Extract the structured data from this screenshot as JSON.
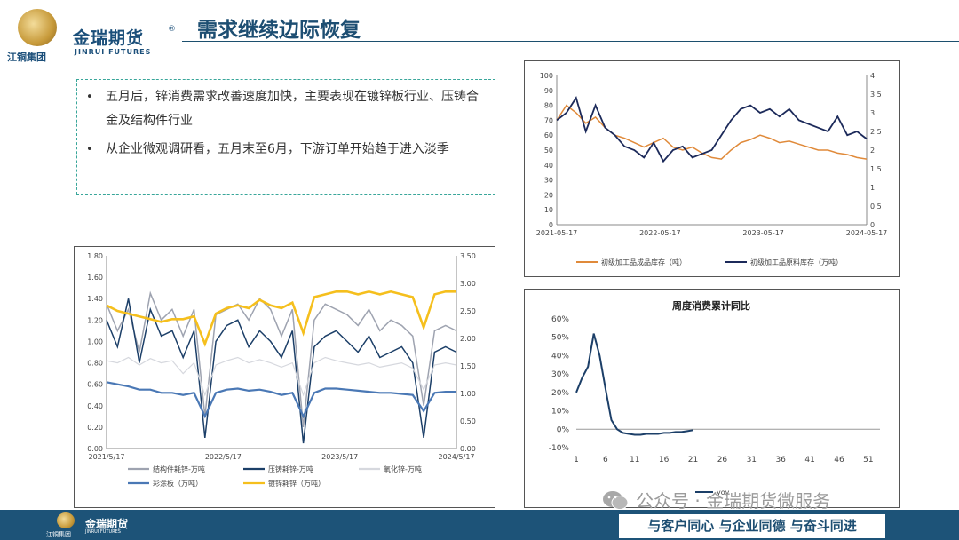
{
  "header": {
    "logo_cn": "金瑞期货",
    "logo_reg": "®",
    "logo_en": "JINRUI FUTURES",
    "logo_group": "江铜集团",
    "title": "需求继续边际恢复"
  },
  "bullets": [
    {
      "text": "五月后，锌消费需求改善速度加快，主要表现在镀锌板行业、压铸合金及结构件行业"
    },
    {
      "text": "从企业微观调研看，五月末至6月，下游订单开始趋于进入淡季"
    }
  ],
  "colors": {
    "header_blue": "#1d4e72",
    "footer_blue": "#1d5378",
    "orange": "#e08a3a",
    "navy": "#1c2a5a",
    "gold": "#f5bf1d",
    "steel_blue": "#4a78b5"
  },
  "chart_data": [
    {
      "type": "line",
      "id": "zinc_consumption",
      "x_ticks": [
        "2021/5/17",
        "2022/5/17",
        "2023/5/17",
        "2024/5/17"
      ],
      "ylim_left": [
        0,
        1.8
      ],
      "left_ticks": [
        "0.00",
        "0.20",
        "0.40",
        "0.60",
        "0.80",
        "1.00",
        "1.20",
        "1.40",
        "1.60",
        "1.80"
      ],
      "ylim_right": [
        0,
        3.5
      ],
      "right_ticks": [
        "0.00",
        "0.50",
        "1.00",
        "1.50",
        "2.00",
        "2.50",
        "3.00",
        "3.50"
      ],
      "series": [
        {
          "name": "结构件耗锌-万吨",
          "color": "#9ea3b0",
          "axis": "left",
          "values": [
            1.35,
            1.1,
            1.3,
            0.9,
            1.45,
            1.2,
            1.3,
            1.05,
            1.3,
            0.3,
            1.25,
            1.3,
            1.35,
            1.2,
            1.4,
            1.3,
            1.05,
            1.3,
            0.2,
            1.2,
            1.35,
            1.3,
            1.25,
            1.15,
            1.3,
            1.1,
            1.2,
            1.15,
            1.05,
            0.4,
            1.1,
            1.15,
            1.1
          ]
        },
        {
          "name": "压铸耗锌-万吨",
          "color": "#1c3f68",
          "axis": "left",
          "values": [
            1.2,
            0.95,
            1.4,
            0.8,
            1.3,
            1.05,
            1.1,
            0.85,
            1.1,
            0.1,
            1.0,
            1.15,
            1.2,
            0.95,
            1.1,
            1.0,
            0.85,
            1.1,
            0.05,
            0.95,
            1.05,
            1.1,
            1.0,
            0.9,
            1.05,
            0.85,
            0.9,
            0.95,
            0.8,
            0.1,
            0.9,
            0.95,
            0.9
          ]
        },
        {
          "name": "氧化锌-万吨",
          "color": "#d6d8de",
          "axis": "left",
          "values": [
            0.82,
            0.8,
            0.85,
            0.78,
            0.84,
            0.8,
            0.82,
            0.7,
            0.8,
            0.5,
            0.78,
            0.82,
            0.85,
            0.8,
            0.83,
            0.8,
            0.76,
            0.8,
            0.5,
            0.8,
            0.85,
            0.82,
            0.8,
            0.78,
            0.8,
            0.76,
            0.78,
            0.8,
            0.75,
            0.55,
            0.78,
            0.8,
            0.78
          ]
        },
        {
          "name": "彩涂板（万吨）",
          "color": "#4a78b5",
          "axis": "left",
          "values": [
            0.62,
            0.6,
            0.58,
            0.55,
            0.55,
            0.52,
            0.52,
            0.5,
            0.52,
            0.3,
            0.52,
            0.55,
            0.56,
            0.54,
            0.55,
            0.53,
            0.5,
            0.52,
            0.3,
            0.52,
            0.56,
            0.56,
            0.55,
            0.54,
            0.53,
            0.52,
            0.52,
            0.51,
            0.5,
            0.35,
            0.52,
            0.53,
            0.53
          ]
        },
        {
          "name": "镀锌耗锌（万吨）",
          "color": "#f5bf1d",
          "axis": "right",
          "values": [
            2.6,
            2.5,
            2.45,
            2.4,
            2.35,
            2.3,
            2.35,
            2.35,
            2.4,
            1.9,
            2.45,
            2.55,
            2.6,
            2.55,
            2.7,
            2.6,
            2.55,
            2.65,
            2.1,
            2.75,
            2.8,
            2.85,
            2.85,
            2.8,
            2.85,
            2.8,
            2.85,
            2.8,
            2.75,
            2.2,
            2.8,
            2.85,
            2.85
          ]
        }
      ]
    },
    {
      "type": "line",
      "id": "inventory",
      "x_ticks": [
        "2021-05-17",
        "2022-05-17",
        "2023-05-17",
        "2024-05-17"
      ],
      "ylim_left": [
        0,
        100
      ],
      "left_ticks": [
        "0",
        "10",
        "20",
        "30",
        "40",
        "50",
        "60",
        "70",
        "80",
        "90",
        "100"
      ],
      "ylim_right": [
        0,
        4
      ],
      "right_ticks": [
        "0",
        "0.5",
        "1",
        "1.5",
        "2",
        "2.5",
        "3",
        "3.5",
        "4"
      ],
      "series": [
        {
          "name": "初级加工品成品库存（吨）",
          "color": "#e08a3a",
          "axis": "left",
          "values": [
            70,
            80,
            75,
            68,
            72,
            65,
            60,
            58,
            55,
            52,
            55,
            58,
            52,
            50,
            52,
            48,
            45,
            44,
            50,
            55,
            57,
            60,
            58,
            55,
            56,
            54,
            52,
            50,
            50,
            48,
            47,
            45,
            44
          ]
        },
        {
          "name": "初级加工品原料库存（万吨）",
          "color": "#1c2a5a",
          "axis": "right",
          "values": [
            2.8,
            3.0,
            3.4,
            2.5,
            3.2,
            2.6,
            2.4,
            2.1,
            2.0,
            1.8,
            2.2,
            1.7,
            2.0,
            2.1,
            1.8,
            1.9,
            2.0,
            2.4,
            2.8,
            3.1,
            3.2,
            3.0,
            3.1,
            2.9,
            3.1,
            2.8,
            2.7,
            2.6,
            2.5,
            2.9,
            2.4,
            2.5,
            2.3
          ]
        }
      ]
    },
    {
      "type": "line",
      "id": "weekly_yoy",
      "title": "周度消费累计同比",
      "x": [
        1,
        2,
        3,
        4,
        5,
        6,
        7,
        8,
        9,
        10,
        11,
        12,
        13,
        14,
        15,
        16,
        17,
        18,
        19,
        20,
        21
      ],
      "x_ticks": [
        "1",
        "6",
        "11",
        "16",
        "21",
        "26",
        "31",
        "36",
        "41",
        "46",
        "51"
      ],
      "xlim": [
        1,
        53
      ],
      "ylim": [
        -10,
        60
      ],
      "y_ticks": [
        "-10%",
        "0%",
        "10%",
        "20%",
        "30%",
        "40%",
        "50%",
        "60%"
      ],
      "series": [
        {
          "name": "yoy",
          "color": "#1c3f68",
          "values": [
            20,
            28,
            34,
            52,
            40,
            22,
            5,
            0,
            -2,
            -2.5,
            -3,
            -3,
            -2.5,
            -2.5,
            -2.5,
            -2,
            -2,
            -1.5,
            -1.5,
            -1,
            -0.5
          ]
        }
      ]
    }
  ],
  "footer": {
    "logo_cn": "金瑞期货",
    "logo_en": "JINRUI FUTURES",
    "logo_group": "江铜集团",
    "slogan": "与客户同心 与企业同德 与奋斗同进"
  },
  "watermark": "公众号 · 金瑞期货微服务"
}
